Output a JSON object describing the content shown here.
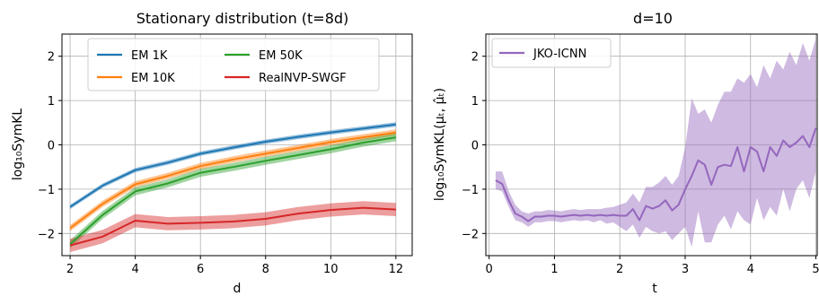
{
  "chart_data": [
    {
      "type": "line",
      "title": "Stationary distribution (t=8d)",
      "xlabel": "d",
      "ylabel": "log₁₀SymKL",
      "xlim": [
        1.75,
        12.5
      ],
      "ylim": [
        -2.5,
        2.5
      ],
      "xticks": [
        2,
        4,
        6,
        8,
        10,
        12
      ],
      "yticks": [
        -2,
        -1,
        0,
        1,
        2
      ],
      "x": [
        2,
        3,
        4,
        5,
        6,
        7,
        8,
        9,
        10,
        11,
        12
      ],
      "grid": true,
      "legend": "upper-left",
      "series": [
        {
          "name": "EM 1K",
          "color": "#1f77b4",
          "band": 0.05,
          "values": [
            -1.4,
            -0.92,
            -0.57,
            -0.4,
            -0.2,
            -0.06,
            0.07,
            0.18,
            0.28,
            0.37,
            0.46
          ]
        },
        {
          "name": "EM 10K",
          "color": "#ff7f0e",
          "band": 0.07,
          "values": [
            -1.88,
            -1.33,
            -0.89,
            -0.7,
            -0.48,
            -0.33,
            -0.2,
            -0.07,
            0.06,
            0.17,
            0.28
          ]
        },
        {
          "name": "EM 50K",
          "color": "#2ca02c",
          "band": 0.09,
          "values": [
            -2.24,
            -1.58,
            -1.05,
            -0.87,
            -0.63,
            -0.5,
            -0.36,
            -0.23,
            -0.1,
            0.05,
            0.17
          ]
        },
        {
          "name": "RealNVP-SWGF",
          "color": "#d62728",
          "band": 0.15,
          "values": [
            -2.27,
            -2.07,
            -1.71,
            -1.78,
            -1.76,
            -1.73,
            -1.67,
            -1.55,
            -1.47,
            -1.42,
            -1.46
          ]
        }
      ]
    },
    {
      "type": "line",
      "title": "d=10",
      "xlabel": "t",
      "ylabel": "log₁₀SymKL(μₜ, μ̂ₜ)",
      "xlim": [
        -0.05,
        5.02
      ],
      "ylim": [
        -2.5,
        2.5
      ],
      "xticks": [
        0,
        1,
        2,
        3,
        4,
        5
      ],
      "yticks": [
        -2,
        -1,
        0,
        1,
        2
      ],
      "grid": true,
      "legend": "upper-left",
      "series": [
        {
          "name": "JKO-ICNN",
          "color": "#9467bd",
          "x": [
            0.1,
            0.2,
            0.3,
            0.4,
            0.5,
            0.6,
            0.7,
            0.8,
            0.9,
            1.0,
            1.1,
            1.2,
            1.3,
            1.4,
            1.5,
            1.6,
            1.7,
            1.8,
            1.9,
            2.0,
            2.1,
            2.2,
            2.3,
            2.4,
            2.5,
            2.6,
            2.7,
            2.8,
            2.9,
            3.0,
            3.1,
            3.2,
            3.3,
            3.4,
            3.5,
            3.6,
            3.7,
            3.8,
            3.9,
            4.0,
            4.1,
            4.2,
            4.3,
            4.4,
            4.5,
            4.6,
            4.7,
            4.8,
            4.9,
            5.0
          ],
          "values": [
            -0.8,
            -0.88,
            -1.25,
            -1.55,
            -1.62,
            -1.72,
            -1.62,
            -1.62,
            -1.6,
            -1.6,
            -1.62,
            -1.6,
            -1.58,
            -1.6,
            -1.58,
            -1.6,
            -1.58,
            -1.6,
            -1.58,
            -1.6,
            -1.6,
            -1.45,
            -1.7,
            -1.38,
            -1.44,
            -1.38,
            -1.25,
            -1.48,
            -1.35,
            -1.0,
            -0.7,
            -0.35,
            -0.45,
            -0.9,
            -0.5,
            -0.45,
            -0.48,
            -0.05,
            -0.6,
            -0.05,
            -0.15,
            -0.6,
            -0.05,
            -0.25,
            0.1,
            -0.05,
            0.05,
            0.2,
            -0.05,
            0.38
          ],
          "lower": [
            -1.0,
            -1.05,
            -1.4,
            -1.7,
            -1.75,
            -1.85,
            -1.75,
            -1.75,
            -1.72,
            -1.72,
            -1.75,
            -1.72,
            -1.7,
            -1.72,
            -1.7,
            -1.75,
            -1.7,
            -1.78,
            -1.75,
            -1.85,
            -1.95,
            -1.8,
            -2.1,
            -1.85,
            -1.95,
            -2.0,
            -1.95,
            -2.15,
            -2.0,
            -1.85,
            -2.3,
            -1.5,
            -2.2,
            -2.2,
            -1.8,
            -1.6,
            -1.9,
            -1.5,
            -1.7,
            -1.8,
            -1.2,
            -1.7,
            -1.4,
            -1.6,
            -1.0,
            -1.5,
            -1.0,
            -0.8,
            -1.2,
            -0.6
          ],
          "upper": [
            -0.6,
            -0.6,
            -1.05,
            -1.35,
            -1.5,
            -1.55,
            -1.5,
            -1.5,
            -1.47,
            -1.48,
            -1.5,
            -1.47,
            -1.45,
            -1.47,
            -1.45,
            -1.45,
            -1.45,
            -1.42,
            -1.4,
            -1.35,
            -1.3,
            -1.1,
            -1.3,
            -0.95,
            -0.95,
            -0.85,
            -0.7,
            -0.9,
            -0.7,
            -0.05,
            1.05,
            0.7,
            0.8,
            0.5,
            0.9,
            1.2,
            1.2,
            1.5,
            1.4,
            1.6,
            1.3,
            1.8,
            1.5,
            1.9,
            1.7,
            2.1,
            1.8,
            2.3,
            1.9,
            2.4
          ]
        }
      ]
    }
  ]
}
